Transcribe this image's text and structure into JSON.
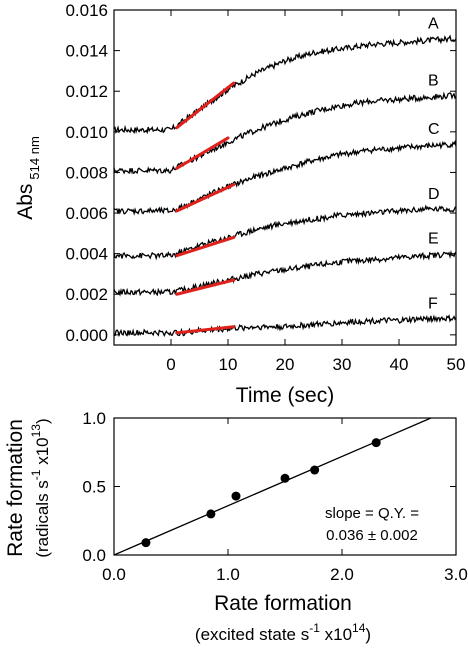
{
  "chart_data": [
    {
      "type": "line",
      "xlabel": "Time (sec)",
      "ylabel": "Abs",
      "ylabel_sub": "514 nm",
      "xlim": [
        -10,
        50
      ],
      "ylim": [
        -0.0005,
        0.016
      ],
      "xticks": [
        0,
        10,
        20,
        30,
        40,
        50
      ],
      "xtick_labels": [
        "0",
        "10",
        "20",
        "30",
        "40",
        "50"
      ],
      "yticks": [
        0.0,
        0.002,
        0.004,
        0.006,
        0.008,
        0.01,
        0.012,
        0.014,
        0.016
      ],
      "ytick_labels": [
        "0.000",
        "0.002",
        "0.004",
        "0.006",
        "0.008",
        "0.010",
        "0.012",
        "0.014",
        "0.016"
      ],
      "series": [
        {
          "name": "A",
          "x": [
            -10,
            -5,
            0,
            2,
            5,
            10,
            15,
            20,
            25,
            30,
            35,
            40,
            45,
            50
          ],
          "values": [
            0.0101,
            0.0101,
            0.0101,
            0.0105,
            0.0111,
            0.0121,
            0.0129,
            0.0135,
            0.0139,
            0.0141,
            0.0143,
            0.0144,
            0.0145,
            0.0146
          ]
        },
        {
          "name": "B",
          "x": [
            -10,
            -5,
            0,
            2,
            5,
            10,
            15,
            20,
            25,
            30,
            35,
            40,
            45,
            50
          ],
          "values": [
            0.0081,
            0.0081,
            0.0081,
            0.0084,
            0.0088,
            0.0095,
            0.0101,
            0.0106,
            0.011,
            0.0113,
            0.0115,
            0.0116,
            0.0117,
            0.0118
          ]
        },
        {
          "name": "C",
          "x": [
            -10,
            -5,
            0,
            2,
            5,
            10,
            15,
            20,
            25,
            30,
            35,
            40,
            45,
            50
          ],
          "values": [
            0.0061,
            0.0061,
            0.0061,
            0.0063,
            0.0067,
            0.0073,
            0.0078,
            0.0082,
            0.0086,
            0.0089,
            0.0091,
            0.0092,
            0.0093,
            0.0094
          ]
        },
        {
          "name": "D",
          "x": [
            -10,
            -5,
            0,
            2,
            5,
            10,
            15,
            20,
            25,
            30,
            35,
            40,
            45,
            50
          ],
          "values": [
            0.0039,
            0.0039,
            0.0039,
            0.0041,
            0.0044,
            0.0048,
            0.0052,
            0.0055,
            0.0057,
            0.0059,
            0.006,
            0.0061,
            0.0062,
            0.0062
          ]
        },
        {
          "name": "E",
          "x": [
            -10,
            -5,
            0,
            2,
            5,
            10,
            15,
            20,
            25,
            30,
            35,
            40,
            45,
            50
          ],
          "values": [
            0.0021,
            0.0021,
            0.0021,
            0.0022,
            0.0024,
            0.0027,
            0.003,
            0.0032,
            0.0034,
            0.0036,
            0.0037,
            0.0038,
            0.0039,
            0.004
          ]
        },
        {
          "name": "F",
          "x": [
            -10,
            -5,
            0,
            2,
            5,
            10,
            15,
            20,
            25,
            30,
            35,
            40,
            45,
            50
          ],
          "values": [
            0.0001,
            0.0001,
            0.0001,
            0.0001,
            0.0002,
            0.0003,
            0.0004,
            0.0004,
            0.0005,
            0.0006,
            0.0007,
            0.0007,
            0.0008,
            0.0008
          ]
        }
      ],
      "fit_lines": [
        {
          "x": [
            1,
            11
          ],
          "values": [
            0.0102,
            0.0124
          ]
        },
        {
          "x": [
            1,
            10
          ],
          "values": [
            0.0082,
            0.0097
          ]
        },
        {
          "x": [
            1,
            11
          ],
          "values": [
            0.0061,
            0.0074
          ]
        },
        {
          "x": [
            1,
            11
          ],
          "values": [
            0.0039,
            0.0048
          ]
        },
        {
          "x": [
            1,
            11
          ],
          "values": [
            0.002,
            0.0027
          ]
        },
        {
          "x": [
            1,
            11
          ],
          "values": [
            0.0001,
            0.0004
          ]
        }
      ],
      "fit_color": "#e0201a",
      "trace_color": "#000000"
    },
    {
      "type": "scatter",
      "xlabel": "Rate formation",
      "xlabel_sub": "(excited state s",
      "xlabel_sub_exp": "-1",
      "xlabel_sub_mid": " x10",
      "xlabel_sub_exp2": "14",
      "xlabel_sub_end": ")",
      "ylabel": "Rate formation",
      "ylabel_sub": "(radicals s",
      "ylabel_sub_exp": "-1",
      "ylabel_sub_mid": " x10",
      "ylabel_sub_exp2": "13",
      "ylabel_sub_end": ")",
      "xlim": [
        0,
        3.0
      ],
      "ylim": [
        0,
        1.0
      ],
      "xticks": [
        0.0,
        1.0,
        2.0,
        3.0
      ],
      "xtick_labels": [
        "0.0",
        "1.0",
        "2.0",
        "3.0"
      ],
      "yticks": [
        0.0,
        0.5,
        1.0
      ],
      "ytick_labels": [
        "0.0",
        "0.5",
        "1.0"
      ],
      "x": [
        0.28,
        0.85,
        1.07,
        1.5,
        1.76,
        2.3
      ],
      "values": [
        0.09,
        0.3,
        0.43,
        0.56,
        0.62,
        0.82
      ],
      "fit": {
        "x": [
          0,
          2.78
        ],
        "values": [
          0.0,
          1.0
        ]
      },
      "annotation_line1": "slope = Q.Y. =",
      "annotation_line2": "0.036 ± 0.002"
    }
  ]
}
